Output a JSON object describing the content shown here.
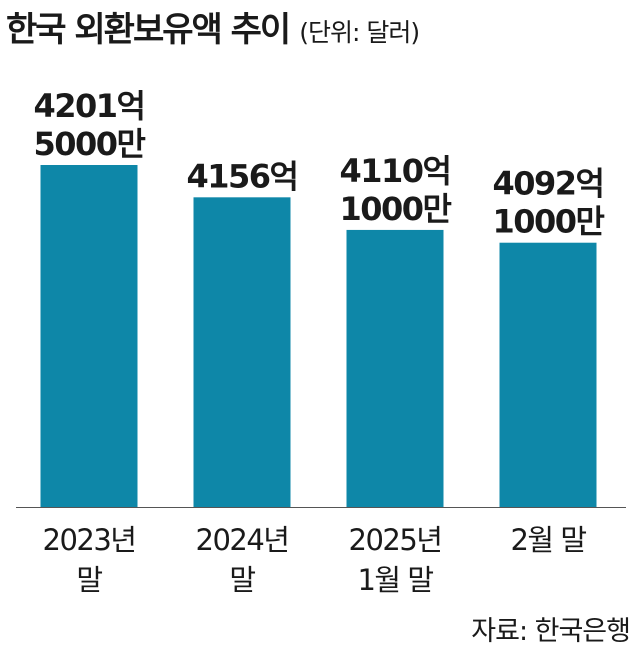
{
  "title": "한국 외환보유액 추이",
  "unit": "(단위: 달러)",
  "source": "자료: 한국은행",
  "chart_data": {
    "type": "bar",
    "title": "한국 외환보유액 추이",
    "ylabel": "",
    "xlabel": "",
    "categories": [
      [
        "2023년",
        "말"
      ],
      [
        "2024년",
        "말"
      ],
      [
        "2025년",
        "1월 말"
      ],
      [
        "2월 말"
      ]
    ],
    "values": [
      4201.5,
      4156,
      4110.1,
      4092.1
    ],
    "value_unit": "억 달러",
    "data_labels": [
      [
        "4201억",
        "5000만"
      ],
      [
        "4156억"
      ],
      [
        "4110억",
        "1000만"
      ],
      [
        "4092억",
        "1000만"
      ]
    ],
    "ylim": [
      3720,
      4201.5
    ],
    "bar_color": "#0e87a8",
    "grid": false,
    "legend": "none"
  }
}
